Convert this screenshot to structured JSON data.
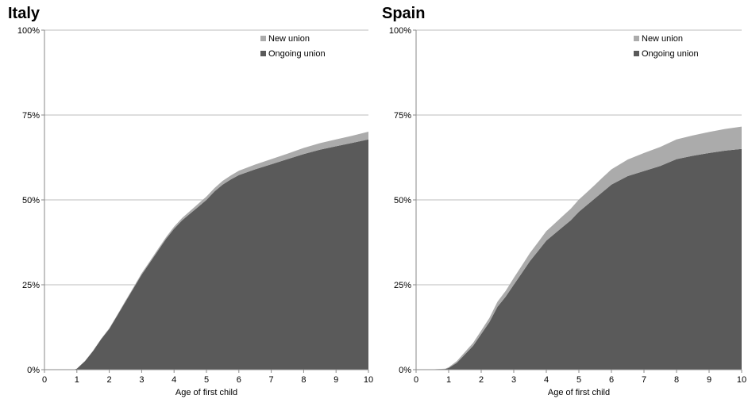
{
  "chart_data": [
    {
      "type": "area",
      "stacked": true,
      "title": "Italy",
      "xlabel": "Age of first child",
      "ylabel": "",
      "xlim": [
        0,
        10
      ],
      "ylim": [
        0,
        100
      ],
      "x_ticks": [
        "0",
        "1",
        "2",
        "3",
        "4",
        "5",
        "6",
        "7",
        "8",
        "9",
        "10"
      ],
      "y_ticks": [
        "0%",
        "25%",
        "50%",
        "75%",
        "100%"
      ],
      "grid": true,
      "legend_position": "top-right",
      "x": [
        0,
        0.9,
        1.0,
        1.25,
        1.5,
        1.75,
        2.0,
        2.25,
        2.5,
        2.75,
        3.0,
        3.25,
        3.5,
        3.75,
        4.0,
        4.25,
        4.5,
        4.75,
        5.0,
        5.25,
        5.5,
        5.75,
        6.0,
        6.5,
        7.0,
        7.5,
        8.0,
        8.5,
        9.0,
        9.5,
        10.0
      ],
      "series": [
        {
          "name": "Ongoing union",
          "color": "#5a5a5a",
          "values": [
            0,
            0,
            0.3,
            2.5,
            5.5,
            9.0,
            12.0,
            16.0,
            20.0,
            24.0,
            28.0,
            31.5,
            35.0,
            38.5,
            41.5,
            44.0,
            46.0,
            48.0,
            50.0,
            52.5,
            54.5,
            56.0,
            57.3,
            59.0,
            60.5,
            62.0,
            63.5,
            64.8,
            65.8,
            66.8,
            67.8
          ]
        },
        {
          "name": "New union",
          "color": "#ababab",
          "values": [
            0,
            0,
            0,
            0,
            0.1,
            0.1,
            0.2,
            0.2,
            0.3,
            0.3,
            0.4,
            0.4,
            0.5,
            0.5,
            0.6,
            0.7,
            0.8,
            0.9,
            1.0,
            1.0,
            1.1,
            1.2,
            1.3,
            1.4,
            1.5,
            1.6,
            1.8,
            1.9,
            2.0,
            2.1,
            2.3
          ]
        }
      ]
    },
    {
      "type": "area",
      "stacked": true,
      "title": "Spain",
      "xlabel": "Age of first child",
      "ylabel": "",
      "xlim": [
        0,
        10
      ],
      "ylim": [
        0,
        100
      ],
      "x_ticks": [
        "0",
        "1",
        "2",
        "3",
        "4",
        "5",
        "6",
        "7",
        "8",
        "9",
        "10"
      ],
      "y_ticks": [
        "0%",
        "25%",
        "50%",
        "75%",
        "100%"
      ],
      "grid": true,
      "legend_position": "top-right",
      "x": [
        0,
        0.5,
        0.9,
        1.0,
        1.25,
        1.5,
        1.75,
        2.0,
        2.25,
        2.5,
        2.75,
        3.0,
        3.25,
        3.5,
        3.75,
        4.0,
        4.25,
        4.5,
        4.75,
        5.0,
        5.25,
        5.5,
        5.75,
        6.0,
        6.5,
        7.0,
        7.5,
        8.0,
        8.5,
        9.0,
        9.5,
        10.0
      ],
      "series": [
        {
          "name": "Ongoing union",
          "color": "#5a5a5a",
          "values": [
            0,
            0.1,
            0.2,
            0.5,
            2.0,
            4.5,
            7.0,
            10.5,
            14.0,
            18.5,
            21.5,
            25.0,
            28.5,
            32.0,
            35.0,
            38.0,
            40.0,
            42.0,
            44.0,
            46.5,
            48.5,
            50.5,
            52.5,
            54.5,
            57.0,
            58.5,
            60.0,
            62.0,
            63.0,
            63.8,
            64.5,
            65.0
          ]
        },
        {
          "name": "New union",
          "color": "#ababab",
          "values": [
            0,
            0,
            0.1,
            0.2,
            0.5,
            0.7,
            0.9,
            1.0,
            1.2,
            1.5,
            1.7,
            2.0,
            2.2,
            2.4,
            2.6,
            2.8,
            3.0,
            3.2,
            3.4,
            3.6,
            3.8,
            4.0,
            4.3,
            4.5,
            4.9,
            5.3,
            5.6,
            5.8,
            6.0,
            6.2,
            6.4,
            6.6
          ]
        }
      ]
    }
  ]
}
